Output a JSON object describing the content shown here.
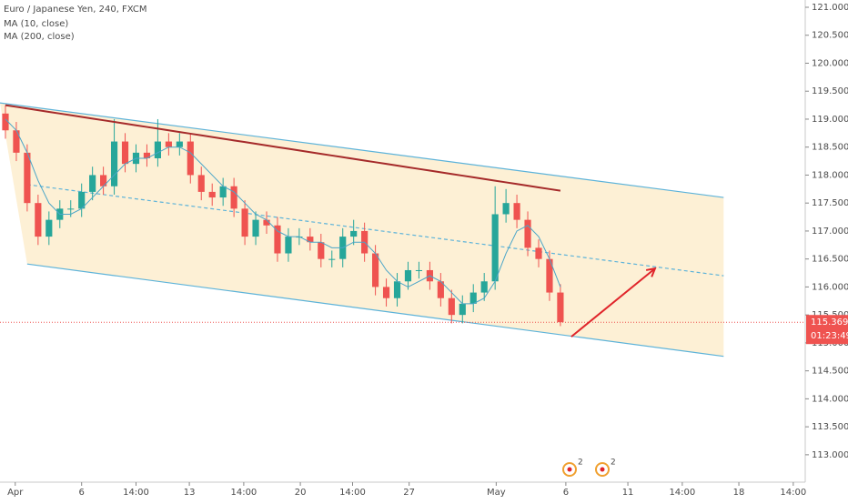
{
  "chart_data": {
    "type": "candlestick",
    "title": "Euro / Japanese Yen, 240, FXCM",
    "xlim": [
      0,
      74
    ],
    "xticks": [
      {
        "value": 1.4,
        "label": "Apr"
      },
      {
        "value": 7.5,
        "label": "6"
      },
      {
        "value": 12.5,
        "label": "14:00"
      },
      {
        "value": 17.4,
        "label": "13"
      },
      {
        "value": 22.4,
        "label": "14:00"
      },
      {
        "value": 27.6,
        "label": "20"
      },
      {
        "value": 32.4,
        "label": "14:00"
      },
      {
        "value": 37.6,
        "label": "27"
      },
      {
        "value": 45.6,
        "label": "May"
      },
      {
        "value": 52,
        "label": "6"
      },
      {
        "value": 57.7,
        "label": "11"
      },
      {
        "value": 62.7,
        "label": "14:00"
      },
      {
        "value": 67.9,
        "label": "18"
      },
      {
        "value": 72.9,
        "label": "14:00"
      }
    ],
    "ylim": [
      112.51,
      121.13
    ],
    "yticks": [
      {
        "value": 121,
        "label": "121.000"
      },
      {
        "value": 120.5,
        "label": "120.500"
      },
      {
        "value": 120,
        "label": "120.000"
      },
      {
        "value": 119.5,
        "label": "119.500"
      },
      {
        "value": 119,
        "label": "119.000"
      },
      {
        "value": 118.5,
        "label": "118.500"
      },
      {
        "value": 118,
        "label": "118.000"
      },
      {
        "value": 117.5,
        "label": "117.500"
      },
      {
        "value": 117,
        "label": "117.000"
      },
      {
        "value": 116.5,
        "label": "116.500"
      },
      {
        "value": 116,
        "label": "116.000"
      },
      {
        "value": 115.5,
        "label": "115.500"
      },
      {
        "value": 115,
        "label": "115.000"
      },
      {
        "value": 114.5,
        "label": "114.500"
      },
      {
        "value": 114,
        "label": "114.000"
      },
      {
        "value": 113.5,
        "label": "113.500"
      },
      {
        "value": 113,
        "label": "113.000"
      }
    ],
    "up_color": "#26a69a",
    "down_color": "#ef5350",
    "open": [
      119.1,
      118.8,
      118.4,
      117.5,
      116.9,
      117.2,
      117.4,
      117.4,
      117.7,
      118.0,
      117.8,
      118.6,
      118.2,
      118.4,
      118.3,
      118.6,
      118.5,
      118.6,
      118.0,
      117.7,
      117.6,
      117.8,
      117.4,
      116.9,
      117.2,
      117.1,
      116.6,
      116.9,
      116.9,
      116.8,
      116.5,
      116.5,
      116.9,
      117.0,
      116.6,
      116.0,
      115.8,
      116.1,
      116.3,
      116.3,
      116.1,
      115.8,
      115.5,
      115.7,
      115.9,
      116.1,
      117.3,
      117.5,
      117.2,
      116.7,
      116.5,
      115.9
    ],
    "high": [
      119.25,
      118.95,
      118.55,
      117.65,
      117.35,
      117.55,
      117.55,
      117.85,
      118.15,
      118.15,
      119.0,
      118.75,
      118.55,
      118.55,
      119.0,
      118.75,
      118.75,
      118.75,
      118.15,
      117.85,
      117.95,
      117.95,
      117.55,
      117.35,
      117.35,
      117.25,
      117.05,
      117.05,
      117.05,
      116.95,
      116.65,
      117.05,
      117.2,
      117.15,
      116.75,
      116.15,
      116.25,
      116.45,
      116.45,
      116.45,
      116.25,
      115.95,
      115.85,
      116.05,
      116.25,
      117.8,
      117.75,
      117.65,
      117.35,
      116.85,
      116.65,
      116.05
    ],
    "low": [
      118.65,
      118.25,
      117.35,
      116.75,
      116.75,
      117.05,
      117.25,
      117.25,
      117.55,
      117.65,
      117.65,
      118.05,
      118.05,
      118.15,
      118.15,
      118.35,
      118.35,
      117.85,
      117.55,
      117.45,
      117.45,
      117.25,
      116.75,
      116.75,
      116.95,
      116.45,
      116.45,
      116.75,
      116.65,
      116.35,
      116.35,
      116.35,
      116.75,
      116.45,
      115.85,
      115.65,
      115.65,
      115.95,
      116.15,
      115.95,
      115.65,
      115.35,
      115.35,
      115.55,
      115.75,
      115.95,
      117.15,
      117.05,
      116.55,
      116.35,
      115.75,
      115.3
    ],
    "close": [
      118.8,
      118.4,
      117.5,
      116.9,
      117.2,
      117.4,
      117.4,
      117.7,
      118.0,
      117.8,
      118.6,
      118.2,
      118.4,
      118.3,
      118.6,
      118.5,
      118.6,
      118.0,
      117.7,
      117.6,
      117.8,
      117.4,
      116.9,
      117.2,
      117.1,
      116.6,
      116.9,
      116.9,
      116.8,
      116.5,
      116.5,
      116.9,
      117.0,
      116.6,
      116.0,
      115.8,
      116.1,
      116.3,
      116.3,
      116.1,
      115.8,
      115.5,
      115.7,
      115.9,
      116.1,
      117.3,
      117.5,
      117.2,
      116.7,
      116.5,
      115.9,
      115.37
    ],
    "series": [
      {
        "name": "MA (10, close)",
        "color": "#4aa5c8",
        "values": [
          119.0,
          118.8,
          118.4,
          117.9,
          117.5,
          117.3,
          117.3,
          117.4,
          117.6,
          117.8,
          118.0,
          118.2,
          118.3,
          118.3,
          118.4,
          118.5,
          118.5,
          118.4,
          118.2,
          118.0,
          117.8,
          117.7,
          117.5,
          117.3,
          117.2,
          117.0,
          116.9,
          116.9,
          116.8,
          116.8,
          116.7,
          116.7,
          116.8,
          116.8,
          116.6,
          116.3,
          116.1,
          116.0,
          116.1,
          116.2,
          116.1,
          115.9,
          115.7,
          115.7,
          115.8,
          116.1,
          116.6,
          117.0,
          117.1,
          116.9,
          116.5,
          116.0
        ]
      },
      {
        "name": "MA (200, close)",
        "color": "#a52a2a",
        "values": [
          119.25,
          119.22,
          119.19,
          119.16,
          119.13,
          119.1,
          119.07,
          119.04,
          119.01,
          118.98,
          118.95,
          118.92,
          118.89,
          118.86,
          118.83,
          118.8,
          118.77,
          118.74,
          118.71,
          118.68,
          118.65,
          118.62,
          118.59,
          118.56,
          118.53,
          118.5,
          118.47,
          118.44,
          118.41,
          118.38,
          118.35,
          118.32,
          118.29,
          118.26,
          118.23,
          118.2,
          118.17,
          118.14,
          118.11,
          118.08,
          118.05,
          118.02,
          117.99,
          117.96,
          117.93,
          117.9,
          117.87,
          117.84,
          117.81,
          117.78,
          117.75,
          117.72
        ]
      }
    ],
    "channel": {
      "color": "#5db3d9",
      "fill": "#fdf0d5",
      "upper": {
        "x": [
          0,
          66.5
        ],
        "y": [
          119.29,
          117.6
        ]
      },
      "middle": {
        "x": [
          2.5,
          66.5
        ],
        "y": [
          117.83,
          116.2
        ]
      },
      "lower": {
        "x": [
          2.5,
          66.5
        ],
        "y": [
          116.41,
          114.76
        ]
      }
    },
    "arrow": {
      "color": "#e0242a",
      "x": [
        52.5,
        60.2
      ],
      "y": [
        115.11,
        116.33
      ]
    },
    "last_price": 115.369,
    "countdown": "01:23:49",
    "events": [
      "2",
      "2"
    ]
  }
}
